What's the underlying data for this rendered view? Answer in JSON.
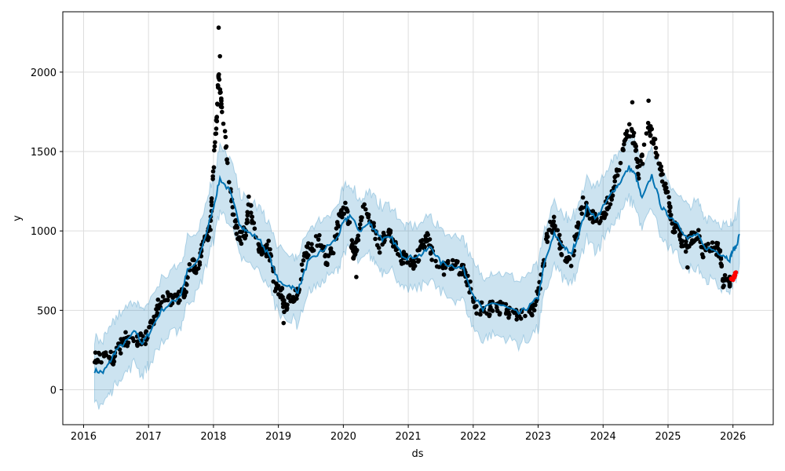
{
  "chart_data": {
    "type": "line",
    "title": "",
    "xlabel": "ds",
    "ylabel": "y",
    "xlim": [
      2015.68,
      2026.62
    ],
    "ylim": [
      -220,
      2380
    ],
    "grid": true,
    "x_ticks": [
      "2016",
      "2017",
      "2018",
      "2019",
      "2020",
      "2021",
      "2022",
      "2023",
      "2024",
      "2025",
      "2026"
    ],
    "y_ticks": [
      "0",
      "500",
      "1000",
      "1500",
      "2000"
    ],
    "colors": {
      "forecast": "#0072B2",
      "interval": "#0072B2",
      "observed": "#000000",
      "recent": "#ff0000"
    },
    "interval_halfwidth": 200,
    "forecast_yhat": [
      [
        2016.17,
        120
      ],
      [
        2016.3,
        110
      ],
      [
        2016.4,
        170
      ],
      [
        2016.5,
        250
      ],
      [
        2016.65,
        300
      ],
      [
        2016.8,
        370
      ],
      [
        2016.9,
        290
      ],
      [
        2017.0,
        350
      ],
      [
        2017.2,
        500
      ],
      [
        2017.4,
        560
      ],
      [
        2017.5,
        600
      ],
      [
        2017.6,
        750
      ],
      [
        2017.75,
        800
      ],
      [
        2017.9,
        1000
      ],
      [
        2018.0,
        1150
      ],
      [
        2018.1,
        1330
      ],
      [
        2018.25,
        1250
      ],
      [
        2018.4,
        1050
      ],
      [
        2018.5,
        1000
      ],
      [
        2018.7,
        950
      ],
      [
        2018.85,
        850
      ],
      [
        2019.0,
        680
      ],
      [
        2019.2,
        650
      ],
      [
        2019.3,
        620
      ],
      [
        2019.45,
        800
      ],
      [
        2019.6,
        850
      ],
      [
        2019.75,
        900
      ],
      [
        2019.9,
        950
      ],
      [
        2020.0,
        1050
      ],
      [
        2020.1,
        1100
      ],
      [
        2020.25,
        1000
      ],
      [
        2020.4,
        1050
      ],
      [
        2020.5,
        1000
      ],
      [
        2020.6,
        950
      ],
      [
        2020.75,
        950
      ],
      [
        2020.9,
        850
      ],
      [
        2021.0,
        830
      ],
      [
        2021.2,
        850
      ],
      [
        2021.35,
        900
      ],
      [
        2021.5,
        800
      ],
      [
        2021.7,
        780
      ],
      [
        2021.85,
        760
      ],
      [
        2022.0,
        600
      ],
      [
        2022.15,
        500
      ],
      [
        2022.3,
        550
      ],
      [
        2022.5,
        520
      ],
      [
        2022.7,
        480
      ],
      [
        2022.85,
        520
      ],
      [
        2023.0,
        580
      ],
      [
        2023.1,
        800
      ],
      [
        2023.25,
        980
      ],
      [
        2023.4,
        900
      ],
      [
        2023.5,
        850
      ],
      [
        2023.6,
        950
      ],
      [
        2023.75,
        1150
      ],
      [
        2023.9,
        1080
      ],
      [
        2024.0,
        1150
      ],
      [
        2024.15,
        1250
      ],
      [
        2024.25,
        1300
      ],
      [
        2024.4,
        1400
      ],
      [
        2024.5,
        1350
      ],
      [
        2024.6,
        1200
      ],
      [
        2024.75,
        1350
      ],
      [
        2024.9,
        1150
      ],
      [
        2025.0,
        1100
      ],
      [
        2025.15,
        1050
      ],
      [
        2025.3,
        950
      ],
      [
        2025.45,
        980
      ],
      [
        2025.55,
        900
      ],
      [
        2025.7,
        880
      ],
      [
        2025.85,
        850
      ],
      [
        2025.95,
        820
      ],
      [
        2026.0,
        880
      ],
      [
        2026.05,
        900
      ],
      [
        2026.1,
        980
      ]
    ],
    "observed": [
      [
        2016.17,
        200
      ],
      [
        2016.3,
        190
      ],
      [
        2016.45,
        200
      ],
      [
        2016.55,
        260
      ],
      [
        2016.65,
        320
      ],
      [
        2016.8,
        310
      ],
      [
        2016.95,
        320
      ],
      [
        2017.05,
        420
      ],
      [
        2017.15,
        530
      ],
      [
        2017.3,
        580
      ],
      [
        2017.45,
        570
      ],
      [
        2017.55,
        600
      ],
      [
        2017.65,
        800
      ],
      [
        2017.75,
        750
      ],
      [
        2017.85,
        920
      ],
      [
        2017.95,
        1000
      ],
      [
        2018.0,
        1400
      ],
      [
        2018.05,
        1700
      ],
      [
        2018.08,
        2000
      ],
      [
        2018.12,
        1800
      ],
      [
        2018.2,
        1500
      ],
      [
        2018.3,
        1100
      ],
      [
        2018.4,
        950
      ],
      [
        2018.5,
        1000
      ],
      [
        2018.55,
        1200
      ],
      [
        2018.65,
        950
      ],
      [
        2018.75,
        850
      ],
      [
        2018.85,
        900
      ],
      [
        2018.95,
        650
      ],
      [
        2019.05,
        620
      ],
      [
        2019.1,
        500
      ],
      [
        2019.2,
        580
      ],
      [
        2019.3,
        620
      ],
      [
        2019.4,
        850
      ],
      [
        2019.5,
        900
      ],
      [
        2019.65,
        950
      ],
      [
        2019.75,
        800
      ],
      [
        2019.85,
        900
      ],
      [
        2019.95,
        1100
      ],
      [
        2020.05,
        1150
      ],
      [
        2020.15,
        850
      ],
      [
        2020.2,
        900
      ],
      [
        2020.3,
        1150
      ],
      [
        2020.45,
        1050
      ],
      [
        2020.55,
        900
      ],
      [
        2020.7,
        1000
      ],
      [
        2020.8,
        900
      ],
      [
        2020.9,
        820
      ],
      [
        2021.0,
        830
      ],
      [
        2021.1,
        780
      ],
      [
        2021.2,
        900
      ],
      [
        2021.3,
        950
      ],
      [
        2021.4,
        800
      ],
      [
        2021.55,
        760
      ],
      [
        2021.7,
        780
      ],
      [
        2021.85,
        760
      ],
      [
        2021.95,
        650
      ],
      [
        2022.05,
        520
      ],
      [
        2022.2,
        500
      ],
      [
        2022.35,
        520
      ],
      [
        2022.5,
        500
      ],
      [
        2022.65,
        480
      ],
      [
        2022.8,
        480
      ],
      [
        2022.95,
        520
      ],
      [
        2023.05,
        700
      ],
      [
        2023.15,
        1000
      ],
      [
        2023.25,
        1050
      ],
      [
        2023.35,
        900
      ],
      [
        2023.5,
        800
      ],
      [
        2023.6,
        1000
      ],
      [
        2023.7,
        1200
      ],
      [
        2023.8,
        1100
      ],
      [
        2023.95,
        1050
      ],
      [
        2024.05,
        1150
      ],
      [
        2024.15,
        1250
      ],
      [
        2024.3,
        1500
      ],
      [
        2024.4,
        1650
      ],
      [
        2024.5,
        1550
      ],
      [
        2024.55,
        1350
      ],
      [
        2024.7,
        1650
      ],
      [
        2024.8,
        1550
      ],
      [
        2024.9,
        1350
      ],
      [
        2025.0,
        1250
      ],
      [
        2025.05,
        1050
      ],
      [
        2025.15,
        1000
      ],
      [
        2025.25,
        900
      ],
      [
        2025.35,
        950
      ],
      [
        2025.45,
        1000
      ],
      [
        2025.55,
        860
      ],
      [
        2025.7,
        900
      ],
      [
        2025.8,
        880
      ],
      [
        2025.85,
        680
      ],
      [
        2025.95,
        680
      ]
    ],
    "recent": [
      [
        2025.98,
        690
      ],
      [
        2026.0,
        700
      ],
      [
        2026.02,
        710
      ],
      [
        2026.04,
        730
      ]
    ],
    "outliers": [
      [
        2018.08,
        2280
      ],
      [
        2018.1,
        2100
      ],
      [
        2024.45,
        1810
      ],
      [
        2024.7,
        1820
      ],
      [
        2019.08,
        420
      ],
      [
        2020.2,
        710
      ],
      [
        2025.3,
        770
      ]
    ]
  }
}
